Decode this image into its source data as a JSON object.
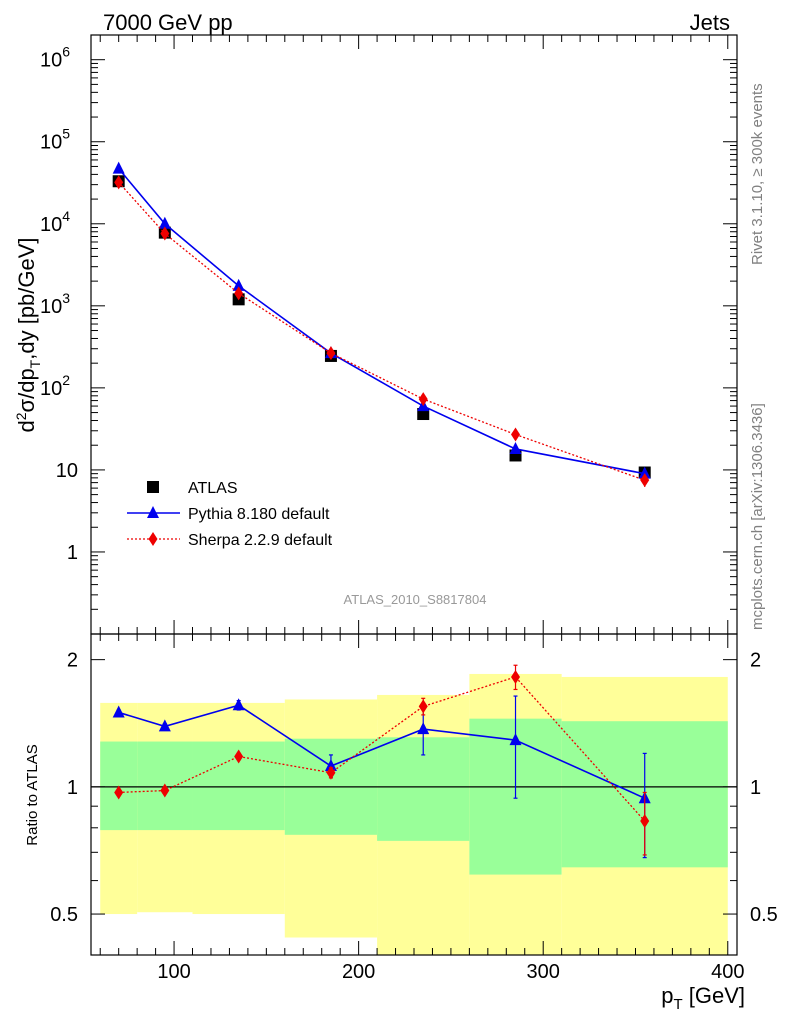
{
  "header": {
    "left": "7000 GeV pp",
    "right": "Jets"
  },
  "side_labels": {
    "top": "Rivet 3.1.10, ≥ 300k events",
    "bottom": "mcplots.cern.ch [arXiv:1306.3436]"
  },
  "analysis_label": "ATLAS_2010_S8817804",
  "colors": {
    "atlas": "#000000",
    "pythia": "#0000ee",
    "sherpa": "#ee0000",
    "band_outer": "#ffff99",
    "band_inner": "#99ff99"
  },
  "chart_data": [
    {
      "type": "scatter",
      "panel": "main",
      "ylabel_parts": [
        "d",
        "2",
        "σ/dp",
        "T",
        ",dy [pb/GeV]"
      ],
      "yscale": "log",
      "xlim": [
        55,
        405
      ],
      "ylim": [
        0.1,
        2000000
      ],
      "y_tick_labels": [
        {
          "value": 1000000,
          "mantissa": "10",
          "exp": "6"
        },
        {
          "value": 100000,
          "mantissa": "10",
          "exp": "5"
        },
        {
          "value": 10000,
          "mantissa": "10",
          "exp": "4"
        },
        {
          "value": 1000,
          "mantissa": "10",
          "exp": "3"
        },
        {
          "value": 100,
          "mantissa": "10",
          "exp": "2"
        },
        {
          "value": 10,
          "mantissa": "10",
          "exp": ""
        },
        {
          "value": 1,
          "mantissa": "1",
          "exp": ""
        }
      ],
      "legend_position": "bottom-left",
      "series": [
        {
          "name": "ATLAS",
          "marker": "square",
          "x": [
            70,
            95,
            135,
            185,
            235,
            285,
            355
          ],
          "y": [
            33000,
            7800,
            1200,
            245,
            48,
            15,
            9.3
          ],
          "yerr": [
            2000,
            600,
            90,
            18,
            4,
            1.5,
            1.5
          ]
        },
        {
          "name": "Pythia 8.180 default",
          "marker": "triangle",
          "line": "solid",
          "x": [
            70,
            95,
            135,
            185,
            235,
            285,
            355
          ],
          "y": [
            47000,
            10000,
            1750,
            265,
            60,
            18,
            9
          ],
          "yerr": [
            1500,
            300,
            60,
            8,
            3,
            1.5,
            1.5
          ]
        },
        {
          "name": "Sherpa 2.2.9 default",
          "marker": "diamond",
          "line": "dotted",
          "x": [
            70,
            95,
            135,
            185,
            235,
            285,
            355
          ],
          "y": [
            32000,
            7600,
            1420,
            265,
            73,
            27,
            7.5
          ],
          "yerr": [
            1000,
            250,
            50,
            8,
            3,
            1.5,
            1.3
          ]
        }
      ]
    },
    {
      "type": "scatter",
      "panel": "ratio",
      "ylabel": "Ratio to ATLAS",
      "xlabel_parts": [
        "p",
        "T",
        " [GeV]"
      ],
      "yscale": "log",
      "xlim": [
        55,
        405
      ],
      "ylim": [
        0.4,
        2.3
      ],
      "y_tick_labels": [
        {
          "value": 0.5,
          "label": "0.5"
        },
        {
          "value": 1,
          "label": "1"
        },
        {
          "value": 2,
          "label": "2"
        }
      ],
      "x_tick_labels": [
        {
          "value": 100,
          "label": "100"
        },
        {
          "value": 200,
          "label": "200"
        },
        {
          "value": 300,
          "label": "300"
        },
        {
          "value": 400,
          "label": "400"
        }
      ],
      "bands": [
        {
          "x0": 60,
          "x1": 80,
          "outer": [
            0.5,
            1.58
          ],
          "inner": [
            0.79,
            1.28
          ]
        },
        {
          "x0": 80,
          "x1": 110,
          "outer": [
            0.505,
            1.58
          ],
          "inner": [
            0.79,
            1.28
          ]
        },
        {
          "x0": 110,
          "x1": 160,
          "outer": [
            0.5,
            1.58
          ],
          "inner": [
            0.79,
            1.28
          ]
        },
        {
          "x0": 160,
          "x1": 210,
          "outer": [
            0.44,
            1.61
          ],
          "inner": [
            0.77,
            1.3
          ]
        },
        {
          "x0": 210,
          "x1": 260,
          "outer": [
            0.39,
            1.65
          ],
          "inner": [
            0.745,
            1.31
          ]
        },
        {
          "x0": 260,
          "x1": 310,
          "outer": [
            0.37,
            1.85
          ],
          "inner": [
            0.62,
            1.45
          ]
        },
        {
          "x0": 310,
          "x1": 400,
          "outer": [
            0.37,
            1.82
          ],
          "inner": [
            0.645,
            1.43
          ]
        }
      ],
      "series": [
        {
          "name": "Pythia 8.180 default",
          "marker": "triangle",
          "line": "solid",
          "x": [
            70,
            95,
            135,
            185,
            235,
            285,
            355
          ],
          "y": [
            1.5,
            1.39,
            1.56,
            1.12,
            1.37,
            1.29,
            0.94
          ],
          "yerr": [
            0.02,
            0.02,
            0.04,
            0.07,
            0.18,
            0.35,
            0.26
          ]
        },
        {
          "name": "Sherpa 2.2.9 default",
          "marker": "diamond",
          "line": "dotted",
          "x": [
            70,
            95,
            135,
            185,
            235,
            285,
            355
          ],
          "y": [
            0.97,
            0.98,
            1.18,
            1.08,
            1.55,
            1.82,
            0.83
          ],
          "yerr": [
            0.01,
            0.01,
            0.02,
            0.03,
            0.07,
            0.12,
            0.14
          ]
        }
      ]
    }
  ]
}
